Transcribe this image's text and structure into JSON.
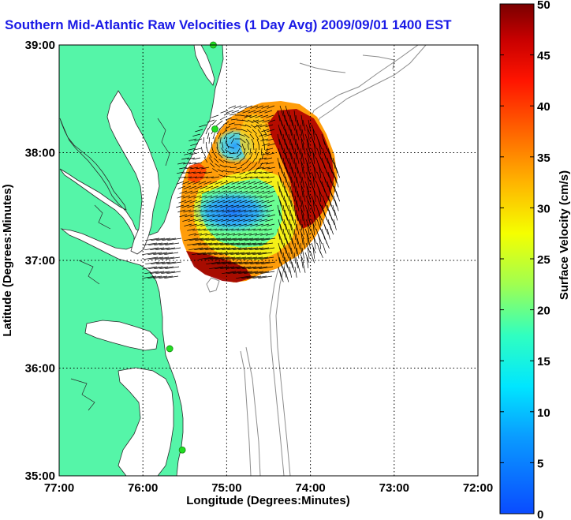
{
  "title": "Southern Mid-Atlantic Raw Velocities (1 Day Avg) 2009/09/01 1400 EST",
  "map": {
    "xlabel": "Longitude (Degrees:Minutes)",
    "ylabel": "Latitude (Degrees:Minutes)",
    "x_ticks": [
      {
        "value": -77,
        "label": "77:00"
      },
      {
        "value": -76,
        "label": "76:00"
      },
      {
        "value": -75,
        "label": "75:00"
      },
      {
        "value": -74,
        "label": "74:00"
      },
      {
        "value": -73,
        "label": "73:00"
      },
      {
        "value": -72,
        "label": "72:00"
      }
    ],
    "y_ticks": [
      {
        "value": 39,
        "label": "39:00"
      },
      {
        "value": 38,
        "label": "38:00"
      },
      {
        "value": 37,
        "label": "37:00"
      },
      {
        "value": 36,
        "label": "36:00"
      },
      {
        "value": 35,
        "label": "35:00"
      }
    ],
    "lon_range": [
      -77,
      -72
    ],
    "lat_range": [
      35,
      39
    ],
    "grid": true,
    "land_color": "#55f5a8",
    "ocean_color": "#ffffff",
    "isobath_color": "#8c8c8c",
    "station_color": "#22dd22",
    "stations": [
      {
        "lon": -75.16,
        "lat": 39.0
      },
      {
        "lon": -75.14,
        "lat": 38.22
      },
      {
        "lon": -75.68,
        "lat": 36.18
      },
      {
        "lon": -75.53,
        "lat": 35.24
      }
    ]
  },
  "colorbar": {
    "label": "Surface Velocity (cm/s)",
    "min": 0,
    "max": 50,
    "ticks": [
      0,
      5,
      10,
      15,
      20,
      25,
      30,
      35,
      40,
      45,
      50
    ],
    "colormap": "jet"
  }
}
